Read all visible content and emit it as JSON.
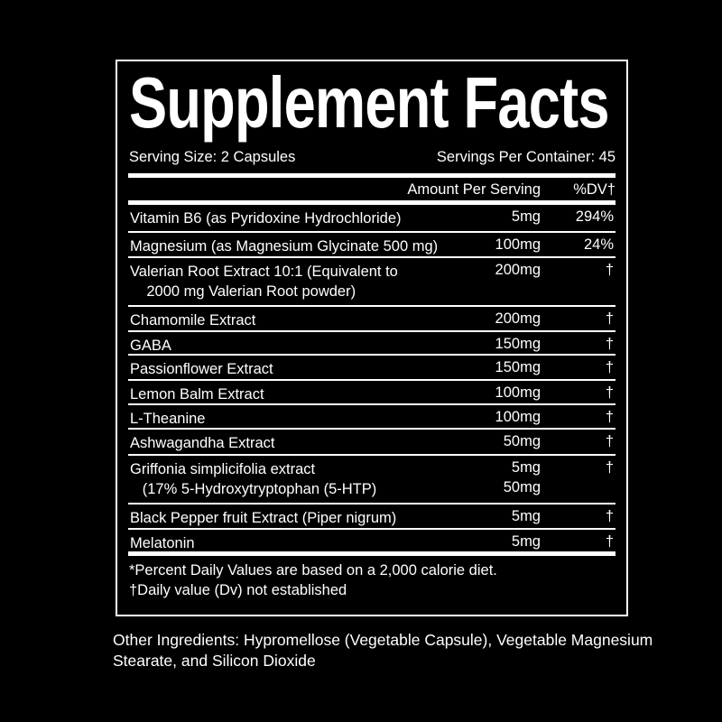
{
  "title": "Supplement Facts",
  "serving_size": "Serving Size: 2 Capsules",
  "servings_per_container": "Servings Per Container: 45",
  "header": {
    "amount": "Amount Per Serving",
    "dv": "%DV†"
  },
  "rows": [
    {
      "name": "Vitamin B6 (as Pyridoxine Hydrochloride)",
      "amount": "5mg",
      "dv": "294%"
    },
    {
      "name": "Magnesium (as Magnesium Glycinate 500 mg)",
      "amount": "100mg",
      "dv": "24%"
    },
    {
      "name": "Valerian Root Extract 10:1 (Equivalent to\n    2000 mg Valerian Root powder)",
      "amount": "200mg",
      "dv": "†"
    },
    {
      "name": "Chamomile Extract",
      "amount": "200mg",
      "dv": "†"
    },
    {
      "name": "GABA",
      "amount": "150mg",
      "dv": "†"
    },
    {
      "name": "Passionflower Extract",
      "amount": "150mg",
      "dv": "†"
    },
    {
      "name": "Lemon Balm Extract",
      "amount": "100mg",
      "dv": "†"
    },
    {
      "name": "L-Theanine",
      "amount": "100mg",
      "dv": "†"
    },
    {
      "name": "Ashwagandha Extract",
      "amount": "50mg",
      "dv": "†"
    },
    {
      "name": "Griffonia simplicifolia extract\n   (17% 5-Hydroxytryptophan (5-HTP)",
      "amount": "5mg\n50mg",
      "dv": "†"
    },
    {
      "name": "Black Pepper fruit Extract (Piper nigrum)",
      "amount": "5mg",
      "dv": "†"
    },
    {
      "name": "Melatonin",
      "amount": "5mg",
      "dv": "†"
    }
  ],
  "footnotes": [
    "*Percent Daily Values are based on a 2,000 calorie diet.",
    "†Daily value (Dv) not established"
  ],
  "other_ingredients": "Other Ingredients: Hypromellose (Vegetable Capsule), Vegetable Magnesium Stearate, and Silicon Dioxide"
}
